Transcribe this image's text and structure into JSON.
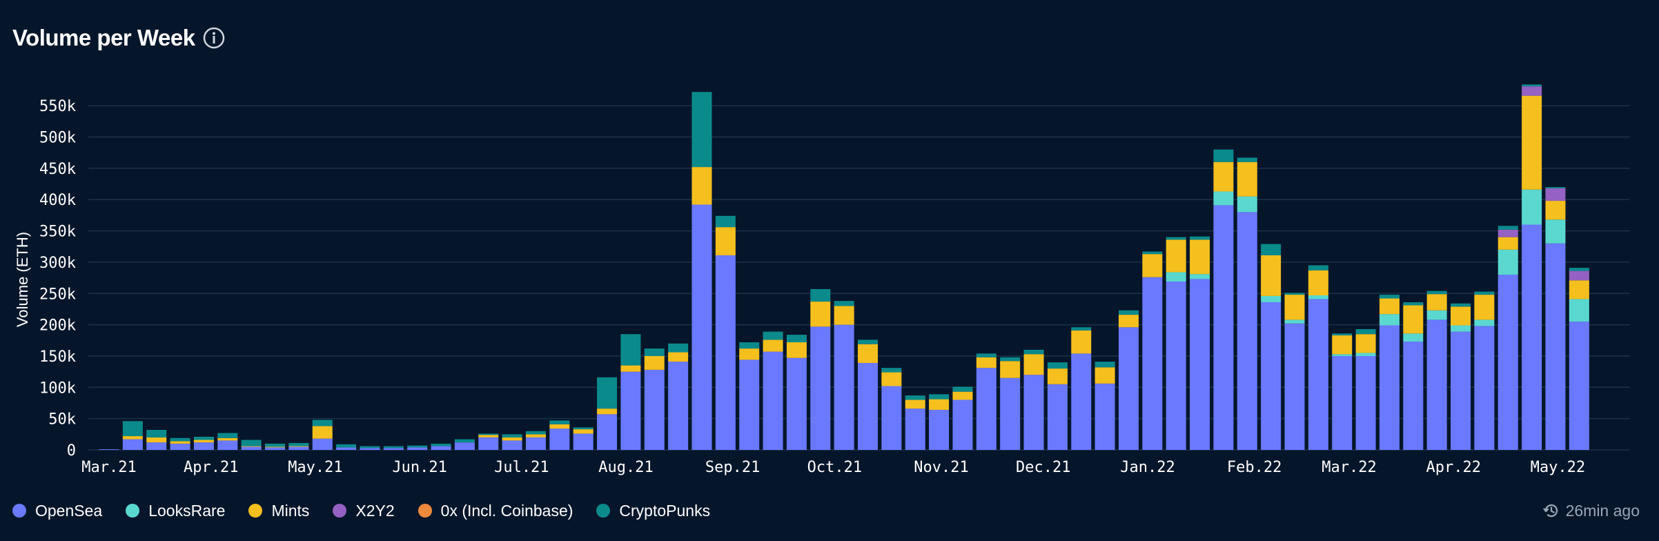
{
  "header": {
    "title": "Volume per Week"
  },
  "status": {
    "updated": "26min ago"
  },
  "colors": {
    "OpenSea": "#6a79ff",
    "LooksRare": "#5ad8cf",
    "Mints": "#f5bf1d",
    "X2Y2": "#9561c2",
    "0x": "#ee8a3c",
    "CryptoPunks": "#0b8a8c",
    "grid": "#1b3249",
    "background": "#06162a"
  },
  "legend": [
    {
      "name": "OpenSea",
      "color": "#6a79ff"
    },
    {
      "name": "LooksRare",
      "color": "#5ad8cf"
    },
    {
      "name": "Mints",
      "color": "#f5bf1d"
    },
    {
      "name": "X2Y2",
      "color": "#9561c2"
    },
    {
      "name": "0x (Incl. Coinbase)",
      "color": "#ee8a3c"
    },
    {
      "name": "CryptoPunks",
      "color": "#0b8a8c"
    }
  ],
  "chart_data": {
    "type": "bar",
    "stacked": true,
    "title": "Volume per Week",
    "ylabel": "Volume (ETH)",
    "xlabel": "",
    "ylim": [
      0,
      580000
    ],
    "yticks": [
      0,
      50000,
      100000,
      150000,
      200000,
      250000,
      300000,
      350000,
      400000,
      450000,
      500000,
      550000
    ],
    "ytick_labels": [
      "0",
      "50k",
      "100k",
      "150k",
      "200k",
      "250k",
      "300k",
      "350k",
      "400k",
      "450k",
      "500k",
      "550k"
    ],
    "month_ticks": [
      {
        "label": "Mar.21",
        "week_index": 0
      },
      {
        "label": "Apr.21",
        "week_index": 4.3
      },
      {
        "label": "May.21",
        "week_index": 8.7
      },
      {
        "label": "Jun.21",
        "week_index": 13.1
      },
      {
        "label": "Jul.21",
        "week_index": 17.4
      },
      {
        "label": "Aug.21",
        "week_index": 21.8
      },
      {
        "label": "Sep.21",
        "week_index": 26.3
      },
      {
        "label": "Oct.21",
        "week_index": 30.6
      },
      {
        "label": "Nov.21",
        "week_index": 35.1
      },
      {
        "label": "Dec.21",
        "week_index": 39.4
      },
      {
        "label": "Jan.22",
        "week_index": 43.8
      },
      {
        "label": "Feb.22",
        "week_index": 48.3
      },
      {
        "label": "Mar.22",
        "week_index": 52.3
      },
      {
        "label": "Apr.22",
        "week_index": 56.7
      },
      {
        "label": "May.22",
        "week_index": 61.1
      }
    ],
    "series": [
      {
        "name": "OpenSea",
        "values": [
          1000,
          17000,
          12000,
          10000,
          12000,
          15000,
          5000,
          4000,
          5000,
          18000,
          4000,
          3000,
          3000,
          4000,
          6000,
          12000,
          20000,
          15000,
          20000,
          34000,
          26000,
          57000,
          125000,
          128000,
          141000,
          392000,
          311000,
          144000,
          157000,
          147000,
          197000,
          200000,
          139000,
          102000,
          66000,
          64000,
          80000,
          131000,
          115000,
          120000,
          105000,
          154000,
          106000,
          196000,
          276000,
          269000,
          273000,
          391000,
          380000,
          236000,
          202000,
          241000,
          150000,
          150000,
          199000,
          173000,
          208000,
          189000,
          198000,
          280000,
          360000,
          330000,
          205000
        ]
      },
      {
        "name": "LooksRare",
        "values": [
          0,
          0,
          0,
          0,
          0,
          0,
          0,
          0,
          0,
          0,
          0,
          0,
          0,
          0,
          0,
          0,
          0,
          0,
          0,
          0,
          0,
          0,
          0,
          0,
          0,
          0,
          0,
          0,
          0,
          0,
          0,
          0,
          0,
          0,
          0,
          0,
          0,
          0,
          0,
          0,
          0,
          0,
          0,
          0,
          0,
          15000,
          8000,
          22000,
          25000,
          10000,
          6000,
          6000,
          3000,
          5000,
          18000,
          13000,
          15000,
          10000,
          10000,
          40000,
          56000,
          38000,
          36000
        ]
      },
      {
        "name": "Mints",
        "values": [
          0,
          5000,
          8000,
          4000,
          4000,
          4000,
          1000,
          1000,
          1000,
          20000,
          0,
          0,
          0,
          0,
          0,
          0,
          4000,
          5000,
          5000,
          7000,
          7000,
          9000,
          10000,
          22000,
          15000,
          60000,
          45000,
          18000,
          19000,
          25000,
          40000,
          30000,
          30000,
          22000,
          14000,
          17000,
          13000,
          17000,
          27000,
          33000,
          25000,
          37000,
          26000,
          20000,
          37000,
          52000,
          55000,
          47000,
          55000,
          65000,
          40000,
          40000,
          30000,
          30000,
          25000,
          45000,
          26000,
          30000,
          40000,
          20000,
          150000,
          30000,
          30000
        ]
      },
      {
        "name": "X2Y2",
        "values": [
          0,
          0,
          0,
          0,
          0,
          0,
          0,
          0,
          0,
          0,
          0,
          0,
          0,
          0,
          0,
          0,
          0,
          0,
          0,
          0,
          0,
          0,
          0,
          0,
          0,
          0,
          0,
          0,
          0,
          0,
          0,
          0,
          0,
          0,
          0,
          0,
          0,
          0,
          0,
          0,
          0,
          0,
          0,
          0,
          0,
          0,
          0,
          0,
          0,
          0,
          0,
          0,
          0,
          0,
          0,
          0,
          0,
          0,
          0,
          12000,
          15000,
          20000,
          15000
        ]
      },
      {
        "name": "0x (Incl. Coinbase)",
        "values": [
          0,
          0,
          0,
          0,
          0,
          0,
          0,
          0,
          0,
          0,
          0,
          0,
          0,
          0,
          0,
          0,
          0,
          0,
          0,
          0,
          0,
          0,
          0,
          0,
          0,
          0,
          0,
          0,
          0,
          0,
          0,
          0,
          0,
          0,
          0,
          0,
          0,
          0,
          0,
          0,
          0,
          0,
          0,
          0,
          0,
          0,
          0,
          0,
          0,
          0,
          0,
          0,
          0,
          0,
          0,
          0,
          0,
          0,
          0,
          0,
          0,
          0,
          0
        ]
      },
      {
        "name": "CryptoPunks",
        "values": [
          0,
          24000,
          12000,
          5000,
          5000,
          8000,
          10000,
          5000,
          5000,
          10000,
          5000,
          3000,
          3000,
          3000,
          4000,
          5000,
          2000,
          5000,
          5000,
          6000,
          3000,
          50000,
          50000,
          12000,
          14000,
          120000,
          18000,
          10000,
          13000,
          12000,
          20000,
          8000,
          7000,
          7000,
          7000,
          8000,
          8000,
          6000,
          6000,
          7000,
          10000,
          5000,
          9000,
          7000,
          4000,
          4000,
          5000,
          20000,
          7000,
          18000,
          3000,
          8000,
          3000,
          8000,
          6000,
          5000,
          5000,
          5000,
          5000,
          6000,
          3000,
          2000,
          5000
        ]
      }
    ]
  }
}
